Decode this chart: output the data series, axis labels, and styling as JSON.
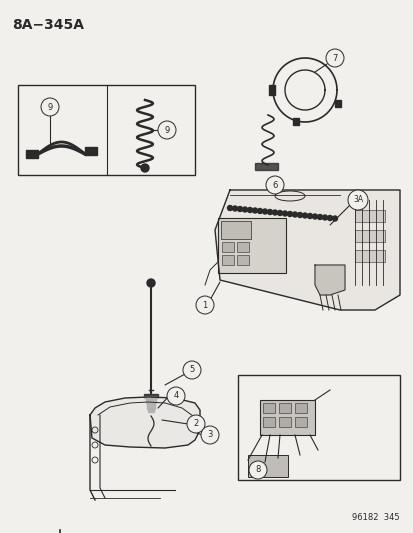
{
  "title": "8A−345A",
  "bg_color": "#f2f0ed",
  "footer_text": "96182  345",
  "line_color": "#2a2a2a",
  "fig_w": 4.14,
  "fig_h": 5.33,
  "dpi": 100
}
